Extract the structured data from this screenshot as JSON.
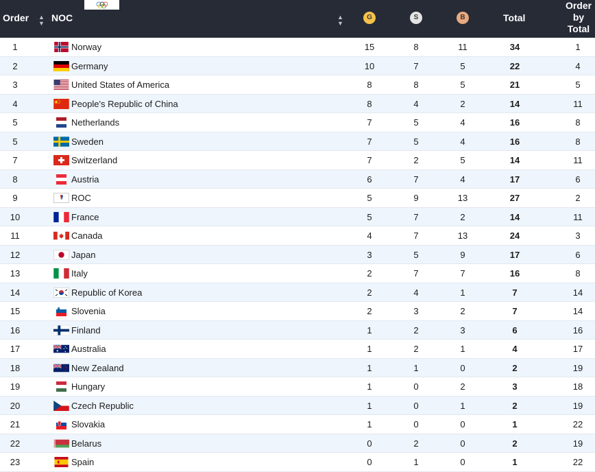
{
  "header": {
    "order": "Order",
    "noc": "NOC",
    "gold": "G",
    "silver": "S",
    "bronze": "B",
    "total": "Total",
    "order_by_total_line1": "Order",
    "order_by_total_line2": "by",
    "order_by_total_line3": "Total"
  },
  "colors": {
    "header_bg": "#262b36",
    "gold": "#f5c24b",
    "silver": "#e4e4e4",
    "bronze": "#e9a97f",
    "row_alt": "#eef5fc"
  },
  "rows": [
    {
      "order": "1",
      "flag": "norway-flag",
      "name": "Norway",
      "g": "15",
      "s": "8",
      "b": "11",
      "total": "34",
      "rank": "1"
    },
    {
      "order": "2",
      "flag": "germany-flag",
      "name": "Germany",
      "g": "10",
      "s": "7",
      "b": "5",
      "total": "22",
      "rank": "4"
    },
    {
      "order": "3",
      "flag": "usa-flag",
      "name": "United States of America",
      "g": "8",
      "s": "8",
      "b": "5",
      "total": "21",
      "rank": "5"
    },
    {
      "order": "4",
      "flag": "china-flag",
      "name": "People's Republic of China",
      "g": "8",
      "s": "4",
      "b": "2",
      "total": "14",
      "rank": "11"
    },
    {
      "order": "5",
      "flag": "netherlands-flag",
      "name": "Netherlands",
      "g": "7",
      "s": "5",
      "b": "4",
      "total": "16",
      "rank": "8"
    },
    {
      "order": "5",
      "flag": "sweden-flag",
      "name": "Sweden",
      "g": "7",
      "s": "5",
      "b": "4",
      "total": "16",
      "rank": "8"
    },
    {
      "order": "7",
      "flag": "switzerland-flag",
      "name": "Switzerland",
      "g": "7",
      "s": "2",
      "b": "5",
      "total": "14",
      "rank": "11"
    },
    {
      "order": "8",
      "flag": "austria-flag",
      "name": "Austria",
      "g": "6",
      "s": "7",
      "b": "4",
      "total": "17",
      "rank": "6"
    },
    {
      "order": "9",
      "flag": "roc-flag",
      "name": "ROC",
      "g": "5",
      "s": "9",
      "b": "13",
      "total": "27",
      "rank": "2"
    },
    {
      "order": "10",
      "flag": "france-flag",
      "name": "France",
      "g": "5",
      "s": "7",
      "b": "2",
      "total": "14",
      "rank": "11"
    },
    {
      "order": "11",
      "flag": "canada-flag",
      "name": "Canada",
      "g": "4",
      "s": "7",
      "b": "13",
      "total": "24",
      "rank": "3"
    },
    {
      "order": "12",
      "flag": "japan-flag",
      "name": "Japan",
      "g": "3",
      "s": "5",
      "b": "9",
      "total": "17",
      "rank": "6"
    },
    {
      "order": "13",
      "flag": "italy-flag",
      "name": "Italy",
      "g": "2",
      "s": "7",
      "b": "7",
      "total": "16",
      "rank": "8"
    },
    {
      "order": "14",
      "flag": "korea-flag",
      "name": "Republic of Korea",
      "g": "2",
      "s": "4",
      "b": "1",
      "total": "7",
      "rank": "14"
    },
    {
      "order": "15",
      "flag": "slovenia-flag",
      "name": "Slovenia",
      "g": "2",
      "s": "3",
      "b": "2",
      "total": "7",
      "rank": "14"
    },
    {
      "order": "16",
      "flag": "finland-flag",
      "name": "Finland",
      "g": "1",
      "s": "2",
      "b": "3",
      "total": "6",
      "rank": "16"
    },
    {
      "order": "17",
      "flag": "australia-flag",
      "name": "Australia",
      "g": "1",
      "s": "2",
      "b": "1",
      "total": "4",
      "rank": "17"
    },
    {
      "order": "18",
      "flag": "new-zealand-flag",
      "name": "New Zealand",
      "g": "1",
      "s": "1",
      "b": "0",
      "total": "2",
      "rank": "19"
    },
    {
      "order": "19",
      "flag": "hungary-flag",
      "name": "Hungary",
      "g": "1",
      "s": "0",
      "b": "2",
      "total": "3",
      "rank": "18"
    },
    {
      "order": "20",
      "flag": "czech-flag",
      "name": "Czech Republic",
      "g": "1",
      "s": "0",
      "b": "1",
      "total": "2",
      "rank": "19"
    },
    {
      "order": "21",
      "flag": "slovakia-flag",
      "name": "Slovakia",
      "g": "1",
      "s": "0",
      "b": "0",
      "total": "1",
      "rank": "22"
    },
    {
      "order": "22",
      "flag": "belarus-flag",
      "name": "Belarus",
      "g": "0",
      "s": "2",
      "b": "0",
      "total": "2",
      "rank": "19"
    },
    {
      "order": "23",
      "flag": "spain-flag",
      "name": "Spain",
      "g": "0",
      "s": "1",
      "b": "0",
      "total": "1",
      "rank": "22"
    }
  ]
}
